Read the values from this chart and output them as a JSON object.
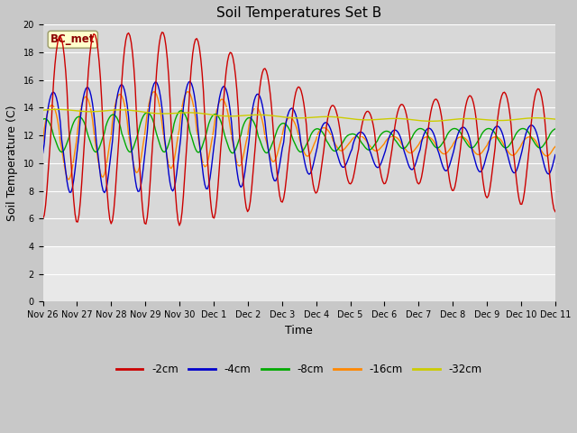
{
  "title": "Soil Temperatures Set B",
  "xlabel": "Time",
  "ylabel": "Soil Temperature (C)",
  "annotation": "BC_met",
  "ylim": [
    0,
    20
  ],
  "yticks": [
    0,
    2,
    4,
    6,
    8,
    10,
    12,
    14,
    16,
    18,
    20
  ],
  "x_labels": [
    "Nov 26",
    "Nov 27",
    "Nov 28",
    "Nov 29",
    "Nov 30",
    "Dec 1",
    "Dec 2",
    "Dec 3",
    "Dec 4",
    "Dec 5",
    "Dec 6",
    "Dec 7",
    "Dec 8",
    "Dec 9",
    "Dec 10",
    "Dec 11"
  ],
  "series_colors": [
    "#cc0000",
    "#0000cc",
    "#00aa00",
    "#ff8800",
    "#cccc00"
  ],
  "series_labels": [
    "-2cm",
    "-4cm",
    "-8cm",
    "-16cm",
    "-32cm"
  ],
  "plot_bg_upper": "#d8d8d8",
  "plot_bg_lower": "#e8e8e8",
  "fig_bg": "#c8c8c8",
  "grid_color": "#ffffff",
  "title_fontsize": 11,
  "tick_fontsize": 7,
  "label_fontsize": 9,
  "lower_bg_threshold": 4.0
}
